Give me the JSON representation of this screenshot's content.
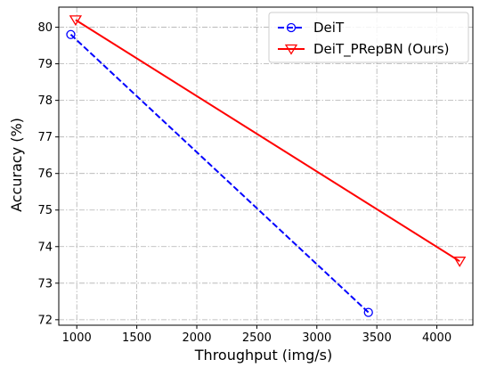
{
  "chart_data": {
    "type": "line",
    "xlabel": "Throughput (img/s)",
    "ylabel": "Accuracy (%)",
    "xlim": [
      850,
      4300
    ],
    "ylim": [
      71.85,
      80.55
    ],
    "xticks": [
      1000,
      1500,
      2000,
      2500,
      3000,
      3500,
      4000
    ],
    "yticks": [
      72,
      73,
      74,
      75,
      76,
      77,
      78,
      79,
      80
    ],
    "grid": true,
    "legend_position": "top-right",
    "series": [
      {
        "name": "DeiT",
        "color": "#0000ff",
        "line_style": "dashed",
        "marker": "circle",
        "x": [
          950,
          3430
        ],
        "y": [
          79.8,
          72.2
        ]
      },
      {
        "name": "DeiT_PRepBN (Ours)",
        "color": "#ff0000",
        "line_style": "solid",
        "marker": "triangle-down",
        "x": [
          990,
          4190
        ],
        "y": [
          80.2,
          73.6
        ]
      }
    ]
  }
}
